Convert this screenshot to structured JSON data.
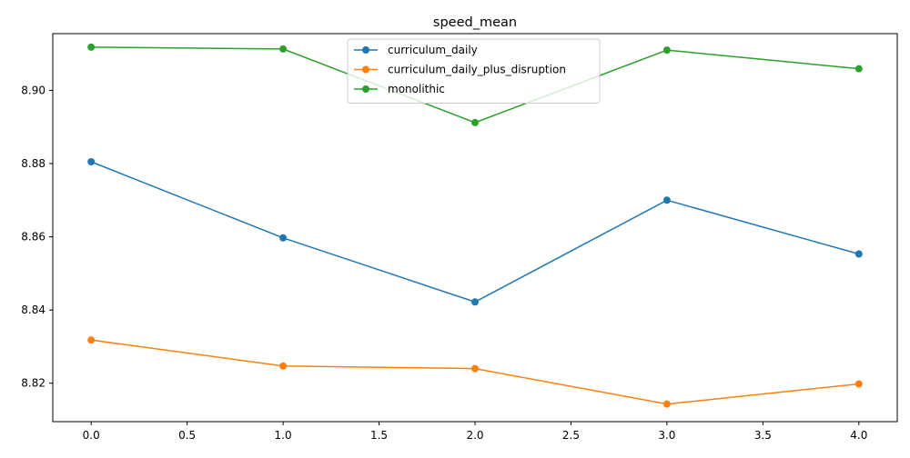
{
  "chart_data": {
    "type": "line",
    "title": "speed_mean",
    "xlabel": "",
    "ylabel": "",
    "x": [
      0,
      1,
      2,
      3,
      4
    ],
    "xlim": [
      -0.2,
      4.2
    ],
    "ylim": [
      8.8095,
      8.9155
    ],
    "xticks": [
      0.0,
      0.5,
      1.0,
      1.5,
      2.0,
      2.5,
      3.0,
      3.5,
      4.0
    ],
    "xtick_labels": [
      "0.0",
      "0.5",
      "1.0",
      "1.5",
      "2.0",
      "2.5",
      "3.0",
      "3.5",
      "4.0"
    ],
    "yticks": [
      8.82,
      8.84,
      8.86,
      8.88,
      8.9
    ],
    "ytick_labels": [
      "8.82",
      "8.84",
      "8.86",
      "8.88",
      "8.90"
    ],
    "grid": false,
    "legend_position": "upper-center",
    "series": [
      {
        "name": "curriculum_daily",
        "color": "#1f77b4",
        "marker": "circle",
        "values": [
          8.8805,
          8.8597,
          8.8422,
          8.87,
          8.8553
        ]
      },
      {
        "name": "curriculum_daily_plus_disruption",
        "color": "#ff7f0e",
        "marker": "circle",
        "values": [
          8.8318,
          8.8247,
          8.824,
          8.8143,
          8.8198
        ]
      },
      {
        "name": "monolithic",
        "color": "#2ca02c",
        "marker": "circle",
        "values": [
          8.9118,
          8.9113,
          8.8912,
          8.911,
          8.9059
        ]
      }
    ]
  }
}
